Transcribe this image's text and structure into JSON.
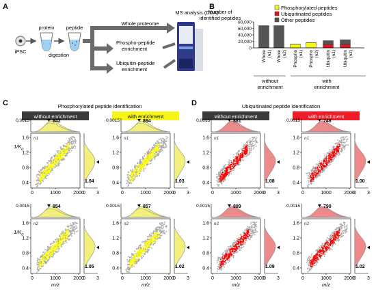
{
  "panel_a": {
    "letter": "A",
    "ipsc": "iPSC",
    "protein": "protein",
    "peptide": "peptide",
    "digestion": "digestion",
    "ms_analysis": "MS analysis (DDA)",
    "arrows": [
      "Whole proteome",
      "Phospho-peptide enrichment",
      "Ubiquitin-peptide enrichment"
    ]
  },
  "panel_b": {
    "letter": "B",
    "ylabel": "Number of identified peptides",
    "group_without": "without enrichment",
    "group_with": "with enrichment",
    "colors": {
      "phospho": "#f5f518",
      "ubiq": "#e8121a",
      "other": "#555555"
    }
  },
  "panel_c": {
    "letter": "C",
    "title": "Phosphorylated peptide identification",
    "headers": [
      "without enrichment",
      "with enrichment"
    ]
  },
  "panel_d": {
    "letter": "D",
    "title": "Ubiquitinated peptide identification",
    "headers": [
      "without enrichment",
      "with enrichment"
    ]
  },
  "axes": {
    "x_label": "m/z",
    "y_label_main": "1/K",
    "y_label_sub": "0",
    "x_ticks": [
      "0",
      "1000",
      "2000"
    ],
    "y_ticks": [
      "0.4",
      "0.8",
      "1.2",
      "1.6"
    ],
    "marg_x_tick": "0.0015",
    "marg_y_ticks": [
      "0",
      "3"
    ],
    "rows": [
      "n1",
      "n2"
    ]
  },
  "cells": [
    {
      "mz": "842",
      "k0": "1.04"
    },
    {
      "mz": "864",
      "k0": "1.03"
    },
    {
      "mz": "881",
      "k0": "1.08"
    },
    {
      "mz": "748",
      "k0": "1.00"
    },
    {
      "mz": "854",
      "k0": "1.05"
    },
    {
      "mz": "857",
      "k0": "1.02"
    },
    {
      "mz": "889",
      "k0": "1.09"
    },
    {
      "mz": "790",
      "k0": "1.02"
    }
  ],
  "chart_data": {
    "type": "bar",
    "categories": [
      "Whole (n1)",
      "Whole (n2)",
      "Phospho (n1)",
      "Phospho (n2)",
      "Ubiquitin (n1)",
      "Ubiquitin (n2)"
    ],
    "series": [
      {
        "name": "Phosphorylated peptides",
        "values": [
          300,
          300,
          11500,
          16000,
          200,
          200
        ]
      },
      {
        "name": "Ubiquitinated peptides",
        "values": [
          200,
          200,
          50,
          50,
          10000,
          10000
        ]
      },
      {
        "name": "Other peptides",
        "values": [
          68000,
          68000,
          300,
          300,
          12000,
          15000
        ]
      }
    ],
    "yticks": [
      "0",
      "20,000",
      "40,000",
      "60,000",
      "80,000"
    ],
    "ylim": [
      0,
      80000
    ],
    "stacked": true,
    "legend": "top-right"
  }
}
